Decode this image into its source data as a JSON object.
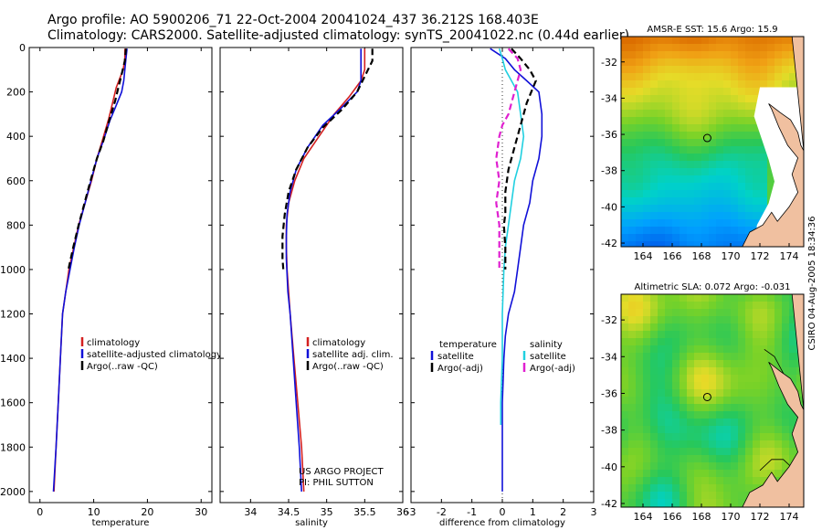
{
  "header": {
    "line1": "Argo profile: AO 5900206_71 22-Oct-2004 20041024_437 36.212S 168.403E",
    "line2": "Climatology: CARS2000. Satellite-adjusted climatology: synTS_20041022.nc (0.44d earlier)"
  },
  "colors": {
    "climatology": "#d42020",
    "satellite": "#1010d8",
    "argo": "#000000",
    "sat_salinity": "#20d0e0",
    "argo_salinity": "#e020d0",
    "land": "#f0c0a0"
  },
  "chart_data": [
    {
      "type": "line",
      "xlabel": "temperature",
      "ylabel": "",
      "xlim": [
        -2,
        32
      ],
      "ylim": [
        2050,
        0
      ],
      "xticks": [
        "0",
        "10",
        "20",
        "30"
      ],
      "xtick_values": [
        0,
        10,
        20,
        30
      ],
      "yticks": [
        "0",
        "200",
        "400",
        "600",
        "800",
        "1000",
        "1200",
        "1400",
        "1600",
        "1800",
        "2000"
      ],
      "ytick_values": [
        0,
        200,
        400,
        600,
        800,
        1000,
        1200,
        1400,
        1600,
        1800,
        2000
      ],
      "legend": [
        "climatology",
        "satellite-adjusted climatology",
        "Argo(..raw -QC)"
      ],
      "series": [
        {
          "name": "climatology",
          "dash": false,
          "points": [
            [
              15.8,
              5
            ],
            [
              15.8,
              50
            ],
            [
              15.5,
              100
            ],
            [
              15.0,
              130
            ],
            [
              14.2,
              180
            ],
            [
              13.6,
              240
            ],
            [
              12.8,
              320
            ],
            [
              11.6,
              420
            ],
            [
              10.6,
              500
            ],
            [
              9.6,
              600
            ],
            [
              8.4,
              700
            ],
            [
              7.2,
              800
            ],
            [
              6.3,
              900
            ],
            [
              5.4,
              1000
            ],
            [
              4.8,
              1100
            ],
            [
              4.2,
              1200
            ],
            [
              3.8,
              1400
            ],
            [
              3.4,
              1600
            ],
            [
              3.0,
              1800
            ],
            [
              2.6,
              2000
            ]
          ]
        },
        {
          "name": "satellite",
          "dash": false,
          "points": [
            [
              16.2,
              5
            ],
            [
              16.0,
              50
            ],
            [
              15.8,
              100
            ],
            [
              15.6,
              150
            ],
            [
              15.2,
              200
            ],
            [
              14.2,
              260
            ],
            [
              13.0,
              330
            ],
            [
              11.8,
              420
            ],
            [
              10.6,
              500
            ],
            [
              9.5,
              600
            ],
            [
              8.4,
              700
            ],
            [
              7.3,
              800
            ],
            [
              6.4,
              900
            ],
            [
              5.6,
              1000
            ],
            [
              4.8,
              1100
            ],
            [
              4.2,
              1200
            ],
            [
              3.8,
              1400
            ],
            [
              3.4,
              1600
            ],
            [
              3.0,
              1800
            ],
            [
              2.5,
              2000
            ]
          ]
        },
        {
          "name": "argo",
          "dash": true,
          "points": [
            [
              16.0,
              5
            ],
            [
              15.8,
              60
            ],
            [
              15.2,
              120
            ],
            [
              14.6,
              180
            ],
            [
              14.0,
              240
            ],
            [
              13.0,
              320
            ],
            [
              11.8,
              420
            ],
            [
              10.6,
              500
            ],
            [
              9.4,
              600
            ],
            [
              8.3,
              700
            ],
            [
              7.2,
              800
            ],
            [
              6.2,
              900
            ],
            [
              5.3,
              1000
            ]
          ]
        }
      ]
    },
    {
      "type": "line",
      "xlabel": "salinity",
      "xlim": [
        33.6,
        36.0
      ],
      "ylim": [
        2050,
        0
      ],
      "xticks": [
        "34",
        "34.5",
        "35",
        "35.5",
        "36"
      ],
      "xtick_values": [
        34,
        34.5,
        35,
        35.5,
        36
      ],
      "legend": [
        "climatology",
        "satellite adj. clim.",
        "Argo(..raw -QC)"
      ],
      "annotation": [
        "US ARGO PROJECT",
        "PI: PHIL SUTTON"
      ],
      "series": [
        {
          "name": "climatology",
          "dash": false,
          "points": [
            [
              35.5,
              5
            ],
            [
              35.5,
              100
            ],
            [
              35.45,
              150
            ],
            [
              35.3,
              220
            ],
            [
              35.1,
              300
            ],
            [
              34.9,
              400
            ],
            [
              34.7,
              500
            ],
            [
              34.58,
              600
            ],
            [
              34.5,
              700
            ],
            [
              34.47,
              800
            ],
            [
              34.47,
              900
            ],
            [
              34.48,
              1000
            ],
            [
              34.52,
              1200
            ],
            [
              34.57,
              1400
            ],
            [
              34.62,
              1600
            ],
            [
              34.67,
              1800
            ],
            [
              34.7,
              2000
            ]
          ]
        },
        {
          "name": "satellite",
          "dash": false,
          "points": [
            [
              35.45,
              5
            ],
            [
              35.45,
              100
            ],
            [
              35.45,
              150
            ],
            [
              35.4,
              200
            ],
            [
              35.2,
              270
            ],
            [
              34.95,
              350
            ],
            [
              34.75,
              450
            ],
            [
              34.6,
              550
            ],
            [
              34.52,
              650
            ],
            [
              34.48,
              750
            ],
            [
              34.47,
              850
            ],
            [
              34.47,
              950
            ],
            [
              34.49,
              1100
            ],
            [
              34.52,
              1200
            ],
            [
              34.56,
              1400
            ],
            [
              34.6,
              1600
            ],
            [
              34.64,
              1800
            ],
            [
              34.67,
              2000
            ]
          ]
        },
        {
          "name": "argo",
          "dash": true,
          "points": [
            [
              35.6,
              5
            ],
            [
              35.6,
              60
            ],
            [
              35.5,
              130
            ],
            [
              35.4,
              200
            ],
            [
              35.2,
              280
            ],
            [
              34.95,
              360
            ],
            [
              34.75,
              450
            ],
            [
              34.6,
              550
            ],
            [
              34.5,
              650
            ],
            [
              34.45,
              750
            ],
            [
              34.42,
              850
            ],
            [
              34.42,
              950
            ],
            [
              34.43,
              1000
            ]
          ]
        }
      ]
    },
    {
      "type": "line",
      "xlabel": "difference from climatology",
      "xlim": [
        -3,
        3
      ],
      "ylim": [
        2050,
        0
      ],
      "xticks": [
        "-3",
        "-2",
        "-1",
        "0",
        "1",
        "2",
        "3"
      ],
      "xtick_values": [
        -3,
        -2,
        -1,
        0,
        1,
        2,
        3
      ],
      "legend_left": {
        "header": "temperature",
        "items": [
          "satellite",
          "Argo(-adj)"
        ]
      },
      "legend_right": {
        "header": "salinity",
        "items": [
          "satellite",
          "Argo(-adj)"
        ]
      },
      "series": [
        {
          "name": "temp satellite",
          "color": "satellite",
          "dash": false,
          "points": [
            [
              -0.4,
              5
            ],
            [
              0.1,
              50
            ],
            [
              0.4,
              100
            ],
            [
              0.8,
              150
            ],
            [
              1.2,
              200
            ],
            [
              1.3,
              300
            ],
            [
              1.3,
              400
            ],
            [
              1.2,
              500
            ],
            [
              1.0,
              600
            ],
            [
              0.9,
              700
            ],
            [
              0.7,
              800
            ],
            [
              0.6,
              900
            ],
            [
              0.5,
              1000
            ],
            [
              0.4,
              1100
            ],
            [
              0.2,
              1200
            ],
            [
              0.1,
              1300
            ],
            [
              0.05,
              1400
            ],
            [
              0,
              1600
            ],
            [
              0,
              1800
            ],
            [
              0,
              2000
            ]
          ]
        },
        {
          "name": "sal satellite",
          "color": "sat_salinity",
          "dash": false,
          "points": [
            [
              -0.1,
              5
            ],
            [
              0,
              50
            ],
            [
              0.1,
              100
            ],
            [
              0.3,
              150
            ],
            [
              0.5,
              200
            ],
            [
              0.6,
              300
            ],
            [
              0.7,
              400
            ],
            [
              0.6,
              500
            ],
            [
              0.4,
              600
            ],
            [
              0.3,
              700
            ],
            [
              0.2,
              800
            ],
            [
              0.1,
              900
            ],
            [
              0.05,
              1000
            ],
            [
              0,
              1200
            ],
            [
              0,
              1400
            ],
            [
              -0.05,
              1600
            ],
            [
              -0.05,
              1700
            ]
          ]
        },
        {
          "name": "temp argo",
          "color": "argo",
          "dash": true,
          "points": [
            [
              0.3,
              5
            ],
            [
              0.6,
              50
            ],
            [
              0.9,
              100
            ],
            [
              1.1,
              150
            ],
            [
              0.8,
              250
            ],
            [
              0.6,
              350
            ],
            [
              0.4,
              450
            ],
            [
              0.2,
              550
            ],
            [
              0.1,
              650
            ],
            [
              0.1,
              750
            ],
            [
              0.05,
              800
            ],
            [
              0.1,
              900
            ],
            [
              0.1,
              1000
            ]
          ]
        },
        {
          "name": "sal argo",
          "color": "argo_salinity",
          "dash": true,
          "points": [
            [
              0.2,
              5
            ],
            [
              0.5,
              50
            ],
            [
              0.6,
              100
            ],
            [
              0.4,
              200
            ],
            [
              0.2,
              300
            ],
            [
              0,
              350
            ],
            [
              -0.1,
              400
            ],
            [
              -0.2,
              500
            ],
            [
              -0.1,
              600
            ],
            [
              -0.2,
              700
            ],
            [
              -0.1,
              800
            ],
            [
              -0.1,
              900
            ],
            [
              -0.1,
              1000
            ]
          ]
        }
      ]
    }
  ],
  "maps": [
    {
      "title": "AMSR-E SST: 15.6 Argo: 15.9",
      "yticks": [
        "-32",
        "-34",
        "-36",
        "-38",
        "-40",
        "-42"
      ],
      "ytick_values": [
        -32,
        -34,
        -36,
        -38,
        -40,
        -42
      ],
      "xticks": [
        "164",
        "166",
        "168",
        "170",
        "172",
        "174"
      ],
      "xtick_values": [
        164,
        166,
        168,
        170,
        172,
        174
      ],
      "lonlim": [
        162.5,
        175
      ],
      "latlim": [
        -42.2,
        -30.6
      ],
      "float_lon": 168.4,
      "float_lat": -36.2
    },
    {
      "title": "Altimetric SLA: 0.072 Argo: -0.031",
      "yticks": [
        "-32",
        "-34",
        "-36",
        "-38",
        "-40",
        "-42"
      ],
      "ytick_values": [
        -32,
        -34,
        -36,
        -38,
        -40,
        -42
      ],
      "xticks": [
        "164",
        "166",
        "168",
        "170",
        "172",
        "174"
      ],
      "xtick_values": [
        164,
        166,
        168,
        170,
        172,
        174
      ],
      "lonlim": [
        162.5,
        175
      ],
      "latlim": [
        -42.2,
        -30.6
      ],
      "float_lon": 168.4,
      "float_lat": -36.2
    }
  ],
  "stamp": "CSIRO 04-Aug-2005 18:34:36"
}
